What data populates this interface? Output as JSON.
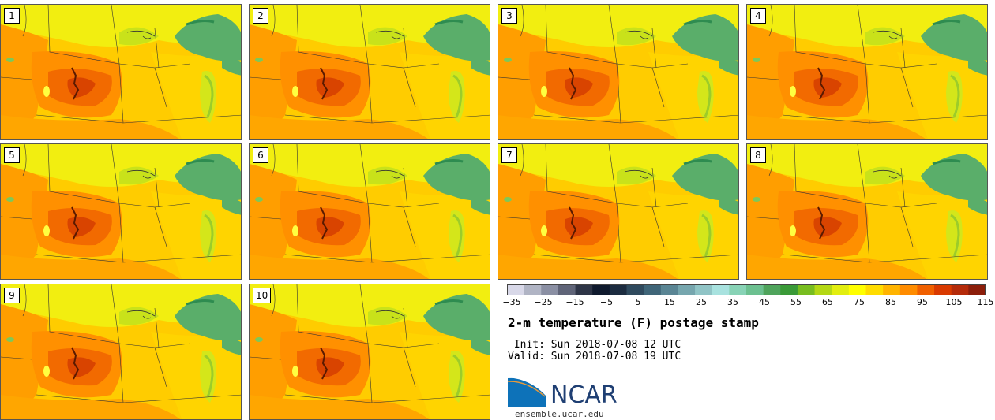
{
  "panels": [
    {
      "label": "1"
    },
    {
      "label": "2"
    },
    {
      "label": "3"
    },
    {
      "label": "4"
    },
    {
      "label": "5"
    },
    {
      "label": "6"
    },
    {
      "label": "7"
    },
    {
      "label": "8"
    },
    {
      "label": "9"
    },
    {
      "label": "10"
    }
  ],
  "colorbar": {
    "colors": [
      "#d8d8e8",
      "#b0b4c4",
      "#8a8fa3",
      "#5f6478",
      "#2e3547",
      "#0f1a2e",
      "#1c2c40",
      "#2f4a5e",
      "#3f6578",
      "#5a8594",
      "#76a6ae",
      "#90c4c6",
      "#a8e2df",
      "#88d3b6",
      "#6cc090",
      "#4fa45c",
      "#3a9a38",
      "#78bd20",
      "#b4d815",
      "#e2ee10",
      "#ffff00",
      "#ffdc00",
      "#ffb400",
      "#ff8c00",
      "#f06000",
      "#d93a00",
      "#b52b0a",
      "#8c1e0a"
    ],
    "ticks": [
      "−35",
      "−25",
      "−15",
      "−5",
      "5",
      "15",
      "25",
      "35",
      "45",
      "55",
      "65",
      "75",
      "85",
      "95",
      "105",
      "115"
    ]
  },
  "title": "2-m temperature (F) postage stamp",
  "init": " Init: Sun 2018-07-08 12 UTC",
  "valid": "Valid: Sun 2018-07-08 19 UTC",
  "logo": {
    "text": "NCAR",
    "url": "ensemble.ucar.edu"
  }
}
